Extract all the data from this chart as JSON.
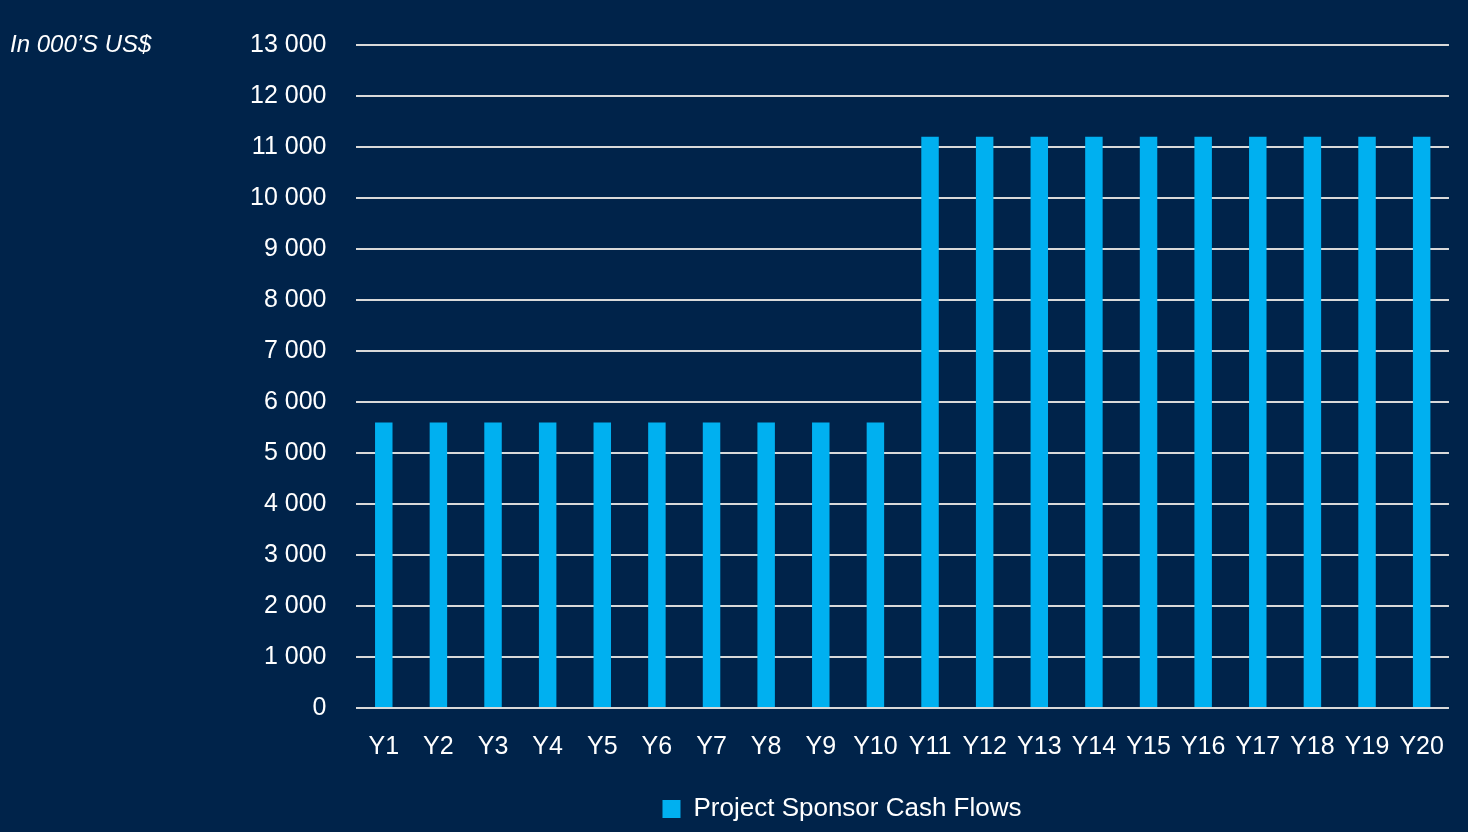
{
  "chart_data": {
    "type": "bar",
    "ylabel": "In 000’S US$",
    "categories": [
      "Y1",
      "Y2",
      "Y3",
      "Y4",
      "Y5",
      "Y6",
      "Y7",
      "Y8",
      "Y9",
      "Y10",
      "Y11",
      "Y12",
      "Y13",
      "Y14",
      "Y15",
      "Y16",
      "Y17",
      "Y18",
      "Y19",
      "Y20"
    ],
    "series": [
      {
        "name": "Project Sponsor Cash Flows",
        "color": "#00b0f0",
        "values": [
          5600,
          5600,
          5600,
          5600,
          5600,
          5600,
          5600,
          5600,
          5600,
          5600,
          11200,
          11200,
          11200,
          11200,
          11200,
          11200,
          11200,
          11200,
          11200,
          11200
        ]
      }
    ],
    "ylim": [
      0,
      13000
    ],
    "yticks": [
      0,
      1000,
      2000,
      3000,
      4000,
      5000,
      6000,
      7000,
      8000,
      9000,
      10000,
      11000,
      12000,
      13000
    ],
    "grid": "y",
    "legend": "bottom"
  }
}
